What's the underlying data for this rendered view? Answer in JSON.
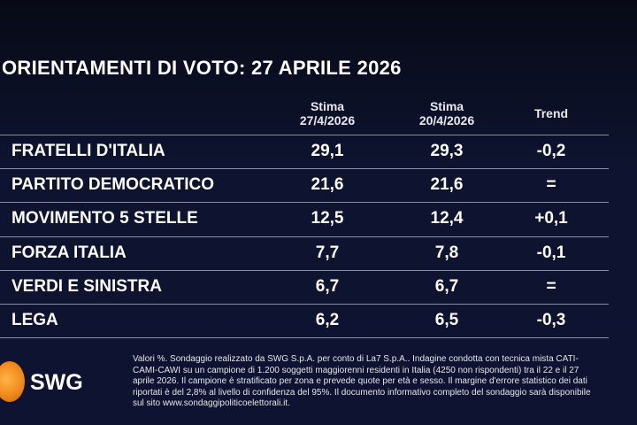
{
  "title": "ORIENTAMENTI DI VOTO: 27 APRILE 2026",
  "table": {
    "columns": [
      [
        "Stima",
        "27/4/2026"
      ],
      [
        "Stima",
        "20/4/2026"
      ],
      [
        "Trend"
      ]
    ],
    "rows": [
      [
        "FRATELLI D'ITALIA",
        "29,1",
        "29,3",
        "-0,2"
      ],
      [
        "PARTITO DEMOCRATICO",
        "21,6",
        "21,6",
        "="
      ],
      [
        "MOVIMENTO 5 STELLE",
        "12,5",
        "12,4",
        "+0,1"
      ],
      [
        "FORZA ITALIA",
        "7,7",
        "7,8",
        "-0,1"
      ],
      [
        "VERDI E SINISTRA",
        "6,7",
        "6,7",
        "="
      ],
      [
        "LEGA",
        "6,2",
        "6,5",
        "-0,3"
      ]
    ]
  },
  "logo": "SWG",
  "footnote": [
    "Valori %. Sondaggio realizzato da SWG S.p.A. per conto di La7 S.p.A.. Indagine condotta con tecnica mista CATI-",
    "CAMI-CAWI su un campione di 1.200 soggetti maggiorenni residenti in Italia (4250 non rispondenti) tra il 22 e il 27",
    "aprile 2026. Il campione è stratificato per zona e prevede quote per età e sesso. Il margine d'errore statistico dei dati",
    "riportati è del 2,8% al livello di confidenza del 95%. Il documento informativo completo del sondaggio sarà disponibile",
    "sul sito www.sondaggipoliticoelettorali.it."
  ]
}
